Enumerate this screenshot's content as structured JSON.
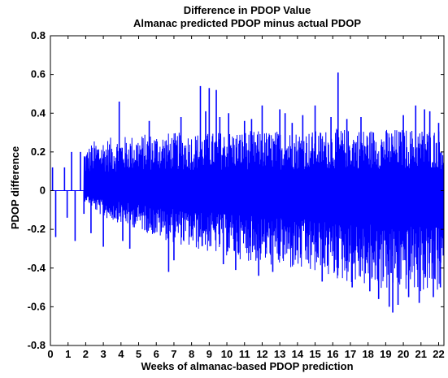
{
  "chart_data": {
    "type": "line",
    "title": "Difference in PDOP Value",
    "subtitle": "Almanac predicted PDOP minus actual PDOP",
    "xlabel": "Weeks of almanac-based PDOP prediction",
    "ylabel": "PDOP difference",
    "xlim": [
      0,
      22.3
    ],
    "ylim": [
      -0.8,
      0.8
    ],
    "xticks": [
      0,
      1,
      2,
      3,
      4,
      5,
      6,
      7,
      8,
      9,
      10,
      11,
      12,
      13,
      14,
      15,
      16,
      17,
      18,
      19,
      20,
      21,
      22
    ],
    "yticks": [
      -0.8,
      -0.6,
      -0.4,
      -0.2,
      0,
      0.2,
      0.4,
      0.6,
      0.8
    ],
    "grid": false,
    "series_color": "#0000ff",
    "series": [
      {
        "envelope_x": [
          0,
          0.1,
          0.3,
          0.6,
          1.0,
          1.5,
          1.8,
          2.0,
          2.5,
          3,
          4,
          5,
          6,
          7,
          8,
          9,
          10,
          11,
          12,
          13,
          14,
          15,
          16,
          17,
          18,
          19,
          20,
          21,
          22,
          22.3
        ],
        "envelope_upper": [
          0,
          0.12,
          0,
          0.12,
          0.19,
          0.2,
          0.24,
          0.22,
          0.26,
          0.27,
          0.28,
          0.29,
          0.3,
          0.3,
          0.3,
          0.3,
          0.31,
          0.31,
          0.31,
          0.31,
          0.31,
          0.31,
          0.32,
          0.32,
          0.32,
          0.32,
          0.32,
          0.32,
          0.32,
          0.3
        ],
        "envelope_lower": [
          0,
          -0.12,
          -0.24,
          -0.13,
          -0.26,
          -0.13,
          -0.08,
          -0.05,
          -0.1,
          -0.14,
          -0.17,
          -0.2,
          -0.24,
          -0.27,
          -0.3,
          -0.32,
          -0.34,
          -0.36,
          -0.38,
          -0.4,
          -0.42,
          -0.44,
          -0.46,
          -0.48,
          -0.5,
          -0.52,
          -0.52,
          -0.53,
          -0.53,
          -0.5
        ],
        "spikes": [
          [
            0.12,
            0.12
          ],
          [
            0.3,
            -0.24
          ],
          [
            0.8,
            0.12
          ],
          [
            0.95,
            -0.14
          ],
          [
            1.2,
            0.2
          ],
          [
            1.4,
            -0.26
          ],
          [
            1.7,
            0.2
          ],
          [
            1.9,
            -0.12
          ],
          [
            2.3,
            -0.22
          ],
          [
            3.0,
            -0.29
          ],
          [
            3.9,
            0.46
          ],
          [
            4.1,
            -0.26
          ],
          [
            4.5,
            -0.3
          ],
          [
            5.6,
            0.36
          ],
          [
            6.7,
            -0.42
          ],
          [
            7.0,
            -0.36
          ],
          [
            7.4,
            0.38
          ],
          [
            8.5,
            0.54
          ],
          [
            8.8,
            0.41
          ],
          [
            9.0,
            0.53
          ],
          [
            9.4,
            0.52
          ],
          [
            9.6,
            0.38
          ],
          [
            9.8,
            -0.38
          ],
          [
            10.1,
            0.4
          ],
          [
            10.5,
            -0.41
          ],
          [
            11.0,
            0.36
          ],
          [
            11.4,
            0.37
          ],
          [
            11.8,
            -0.44
          ],
          [
            12.0,
            0.44
          ],
          [
            12.6,
            -0.42
          ],
          [
            13.0,
            0.42
          ],
          [
            13.3,
            0.4
          ],
          [
            13.7,
            0.35
          ],
          [
            14.3,
            0.39
          ],
          [
            15.0,
            0.44
          ],
          [
            15.4,
            -0.47
          ],
          [
            15.9,
            0.38
          ],
          [
            16.3,
            0.61
          ],
          [
            16.8,
            0.37
          ],
          [
            17.1,
            -0.5
          ],
          [
            17.6,
            0.38
          ],
          [
            18.1,
            -0.52
          ],
          [
            18.6,
            -0.56
          ],
          [
            19.2,
            -0.6
          ],
          [
            19.4,
            -0.63
          ],
          [
            19.7,
            -0.59
          ],
          [
            20.0,
            0.39
          ],
          [
            20.3,
            -0.55
          ],
          [
            20.7,
            0.44
          ],
          [
            20.9,
            -0.58
          ],
          [
            21.2,
            0.42
          ],
          [
            21.5,
            0.41
          ],
          [
            21.7,
            -0.55
          ],
          [
            22.0,
            0.35
          ],
          [
            22.1,
            -0.5
          ]
        ]
      }
    ]
  }
}
